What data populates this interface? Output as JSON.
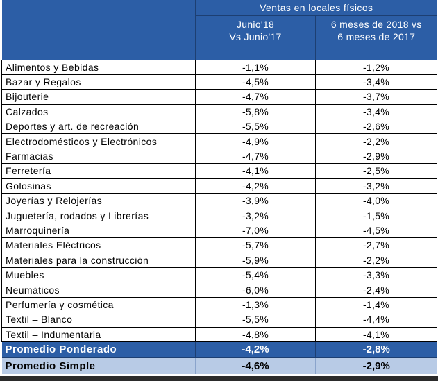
{
  "table": {
    "group_header": "Ventas en locales físicos",
    "col1": [
      "Junio'18",
      "Vs Junio'17"
    ],
    "col2": [
      "6 meses de 2018 vs",
      "6 meses de 2017"
    ],
    "rows": [
      {
        "label": "Alimentos y Bebidas",
        "v1": "-1,1%",
        "v2": "-1,2%"
      },
      {
        "label": "Bazar  y Regalos",
        "v1": "-4,5%",
        "v2": "-3,4%"
      },
      {
        "label": "Bijouterie",
        "v1": "-4,7%",
        "v2": "-3,7%"
      },
      {
        "label": "Calzados",
        "v1": "-5,8%",
        "v2": "-3,4%"
      },
      {
        "label": "Deportes y art. de recreación",
        "v1": "-5,5%",
        "v2": "-2,6%"
      },
      {
        "label": "Electrodomésticos y Electrónicos",
        "v1": "-4,9%",
        "v2": "-2,2%"
      },
      {
        "label": "Farmacias",
        "v1": "-4,7%",
        "v2": "-2,9%"
      },
      {
        "label": "Ferretería",
        "v1": "-4,1%",
        "v2": "-2,5%"
      },
      {
        "label": "Golosinas",
        "v1": "-4,2%",
        "v2": "-3,2%"
      },
      {
        "label": "Joyerías y Relojerías",
        "v1": "-3,9%",
        "v2": "-4,0%"
      },
      {
        "label": "Juguetería, rodados y Librerías",
        "v1": "-3,2%",
        "v2": "-1,5%"
      },
      {
        "label": "Marroquinería",
        "v1": "-7,0%",
        "v2": "-4,5%"
      },
      {
        "label": "Materiales Eléctricos",
        "v1": "-5,7%",
        "v2": "-2,7%"
      },
      {
        "label": "Materiales para la construcción",
        "v1": "-5,9%",
        "v2": "-2,2%"
      },
      {
        "label": "Muebles",
        "v1": "-5,4%",
        "v2": "-3,3%"
      },
      {
        "label": "Neumáticos",
        "v1": "-6,0%",
        "v2": "-2,4%"
      },
      {
        "label": "Perfumería  y cosmética",
        "v1": "-1,3%",
        "v2": "-1,4%"
      },
      {
        "label": "Textil – Blanco",
        "v1": "-5,5%",
        "v2": "-4,4%"
      },
      {
        "label": "Textil – Indumentaria",
        "v1": "-4,8%",
        "v2": "-4,1%"
      }
    ],
    "weighted_avg": {
      "label": "Promedio Ponderado",
      "v1": "-4,2%",
      "v2": "-2,8%"
    },
    "simple_avg": {
      "label": "Promedio Simple",
      "v1": "-4,6%",
      "v2": "-2,9%"
    }
  }
}
